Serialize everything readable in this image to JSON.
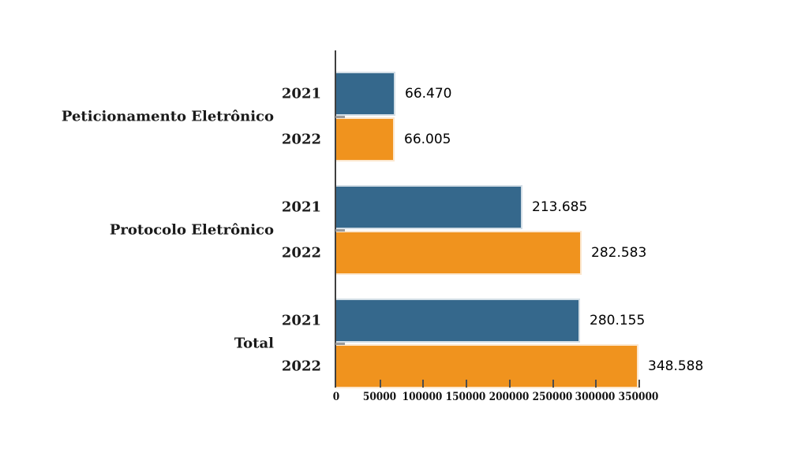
{
  "chart_data": {
    "type": "bar",
    "orientation": "horizontal",
    "title": "",
    "categories": [
      "Peticionamento Eletrônico",
      "Protocolo Eletrônico",
      "Total"
    ],
    "series": [
      {
        "name": "2021",
        "color": "#35688C",
        "values": [
          66470,
          213685,
          280155
        ],
        "labels": [
          "66.470",
          "213.685",
          "280.155"
        ]
      },
      {
        "name": "2022",
        "color": "#F0931E",
        "values": [
          66005,
          282583,
          348588
        ],
        "labels": [
          "66.005",
          "282.583",
          "348.588"
        ]
      }
    ],
    "xlim": [
      0,
      350000
    ],
    "x_ticks": [
      0,
      50000,
      100000,
      150000,
      200000,
      250000,
      300000,
      350000
    ],
    "x_tick_labels": [
      "0",
      "50000",
      "100000",
      "150000",
      "200000",
      "250000",
      "300000",
      "350000"
    ],
    "grid": false,
    "legend": "none",
    "value_labels_shown": true
  }
}
